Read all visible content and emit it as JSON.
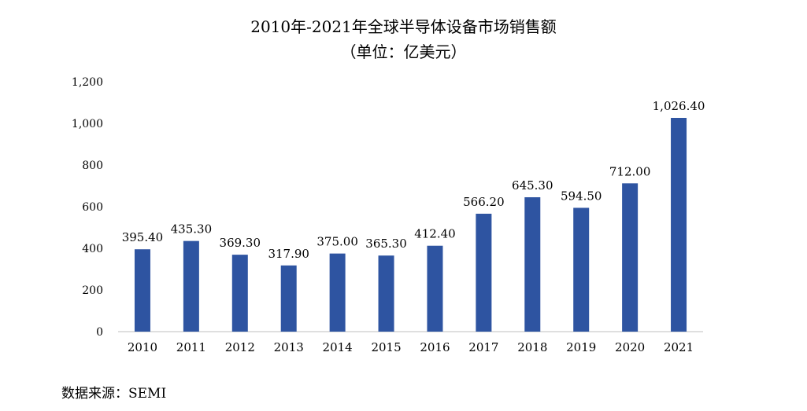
{
  "chart_data": {
    "type": "bar",
    "title": "2010年-2021年全球半导体设备市场销售额",
    "subtitle": "（单位：亿美元）",
    "categories": [
      "2010",
      "2011",
      "2012",
      "2013",
      "2014",
      "2015",
      "2016",
      "2017",
      "2018",
      "2019",
      "2020",
      "2021"
    ],
    "values": [
      395.4,
      435.3,
      369.3,
      317.9,
      375.0,
      365.3,
      412.4,
      566.2,
      645.3,
      594.5,
      712.0,
      1026.4
    ],
    "data_labels": [
      "395.40",
      "435.30",
      "369.30",
      "317.90",
      "375.00",
      "365.30",
      "412.40",
      "566.20",
      "645.30",
      "594.50",
      "712.00",
      "1,026.40"
    ],
    "y_ticks": [
      0,
      200,
      400,
      600,
      800,
      1000,
      1200
    ],
    "y_tick_labels": [
      "0",
      "200",
      "400",
      "600",
      "800",
      "1,000",
      "1,200"
    ],
    "ylim": [
      0,
      1200
    ],
    "xlabel": "",
    "ylabel": "",
    "grid": false,
    "legend": false,
    "bar_color": "#2E54A1"
  },
  "source": "数据来源：SEMI"
}
